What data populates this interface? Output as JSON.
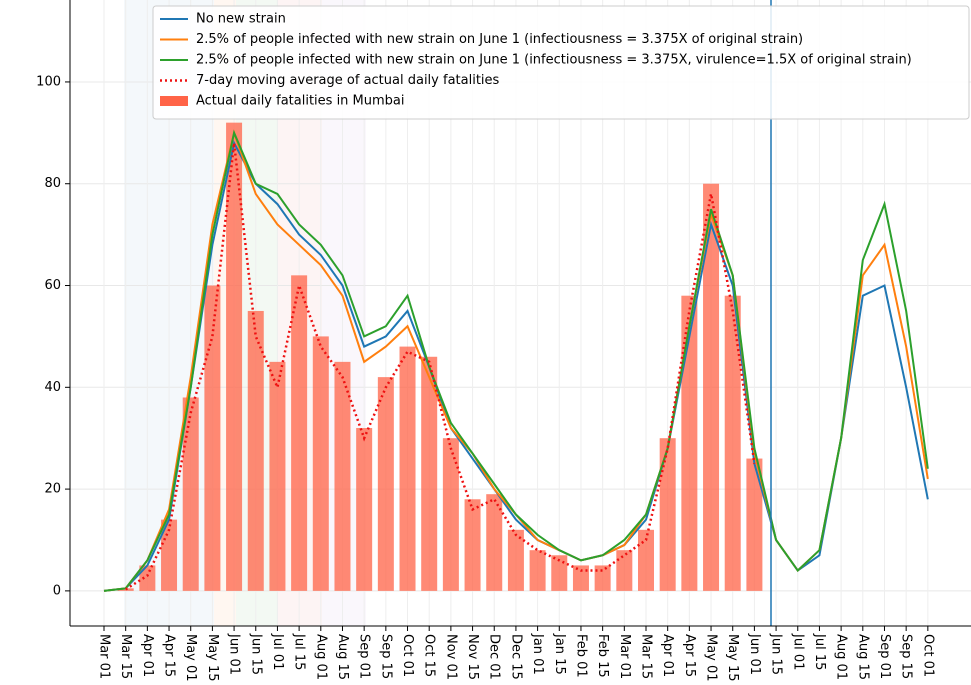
{
  "chart_data": {
    "type": "line",
    "categories": [
      "Mar 01",
      "Mar 15",
      "Apr 01",
      "Apr 15",
      "May 01",
      "May 15",
      "Jun 01",
      "Jun 15",
      "Jul 01",
      "Jul 15",
      "Aug 01",
      "Aug 15",
      "Sep 01",
      "Sep 15",
      "Oct 01",
      "Oct 15",
      "Nov 01",
      "Nov 15",
      "Dec 01",
      "Dec 15",
      "Jan 01",
      "Jan 15",
      "Feb 01",
      "Feb 15",
      "Mar 01",
      "Mar 15",
      "Apr 01",
      "Apr 15",
      "May 01",
      "May 15",
      "Jun 01",
      "Jun 15",
      "Jul 01",
      "Jul 15",
      "Aug 01",
      "Aug 15",
      "Sep 01",
      "Sep 15",
      "Oct 01"
    ],
    "series": [
      {
        "name": "No new strain",
        "color": "#1f77b4",
        "kind": "line",
        "values": [
          0,
          0.5,
          5,
          14,
          40,
          68,
          88,
          80,
          76,
          70,
          66,
          60,
          48,
          50,
          55,
          44,
          32,
          26,
          20,
          14,
          10,
          8,
          6,
          7,
          9,
          14,
          28,
          50,
          72,
          60,
          25,
          10,
          4,
          7,
          30,
          58,
          60,
          40,
          18
        ]
      },
      {
        "name": "2.5% of people infected with new strain on June 1 (infectiousness = 3.375X of original strain)",
        "color": "#ff7f0e",
        "kind": "line",
        "values": [
          0,
          0.5,
          6,
          16,
          42,
          72,
          90,
          78,
          72,
          68,
          64,
          58,
          45,
          48,
          52,
          42,
          32,
          27,
          20,
          15,
          10,
          8,
          6,
          7,
          9,
          15,
          28,
          52,
          74,
          62,
          27,
          10,
          4,
          8,
          30,
          62,
          68,
          48,
          22
        ]
      },
      {
        "name": "2.5% of people infected with new strain on June 1 (infectiousness = 3.375X, virulence=1.5X of original strain)",
        "color": "#2ca02c",
        "kind": "line",
        "values": [
          0,
          0.5,
          6,
          15,
          40,
          70,
          90,
          80,
          78,
          72,
          68,
          62,
          50,
          52,
          58,
          44,
          33,
          27,
          21,
          15,
          11,
          8,
          6,
          7,
          10,
          15,
          28,
          52,
          75,
          62,
          28,
          10,
          4,
          8,
          30,
          65,
          76,
          55,
          24
        ]
      },
      {
        "name": "7-day moving average of actual daily fatalities",
        "color": "#ee1111",
        "kind": "dotted",
        "values": [
          null,
          0.3,
          3,
          12,
          35,
          50,
          88,
          50,
          40,
          60,
          48,
          42,
          30,
          40,
          47,
          45,
          28,
          16,
          18,
          11,
          8,
          6,
          4,
          4,
          7,
          10,
          28,
          55,
          78,
          55,
          25,
          null,
          null,
          null,
          null,
          null,
          null,
          null,
          null
        ]
      },
      {
        "name": "Actual daily fatalities in Mumbai",
        "color": "#ff6347",
        "kind": "bar",
        "values": [
          null,
          0.5,
          5,
          14,
          38,
          60,
          92,
          55,
          45,
          62,
          50,
          45,
          32,
          42,
          48,
          46,
          30,
          18,
          19,
          12,
          8,
          7,
          5,
          5,
          8,
          12,
          30,
          58,
          80,
          58,
          26,
          null,
          null,
          null,
          null,
          null,
          null,
          null,
          null
        ]
      }
    ],
    "ylim": [
      -6.9,
      116.1
    ],
    "yticks": [
      0,
      20,
      40,
      60,
      80,
      100
    ],
    "grid": true,
    "legend": "upper right"
  }
}
